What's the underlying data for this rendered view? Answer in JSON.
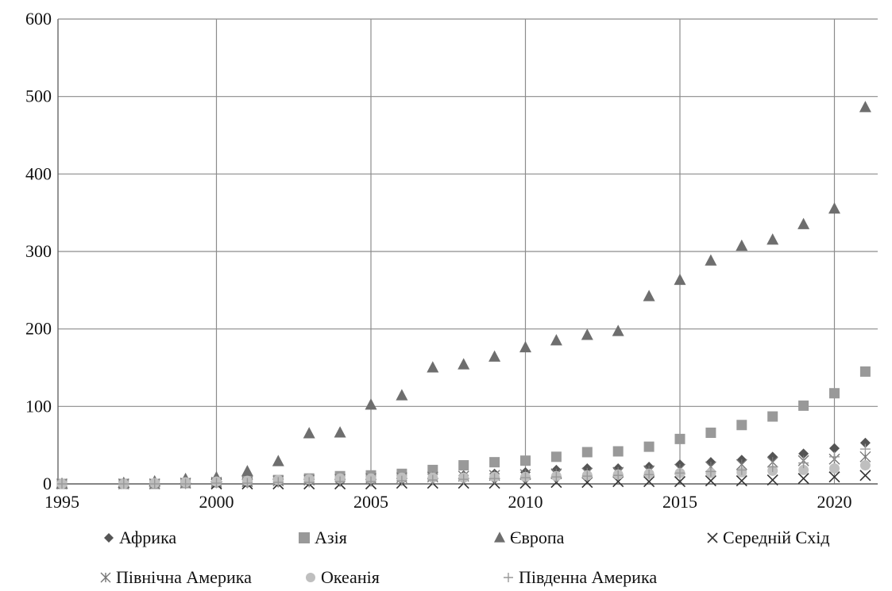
{
  "chart_data": {
    "type": "scatter",
    "title": "",
    "xlabel": "",
    "ylabel": "",
    "xlim": [
      1995,
      2022
    ],
    "ylim": [
      0,
      600
    ],
    "x_ticks": [
      1995,
      2000,
      2005,
      2010,
      2015,
      2020
    ],
    "y_ticks": [
      0,
      100,
      200,
      300,
      400,
      500,
      600
    ],
    "grid": "vertical and horizontal",
    "legend_position": "bottom",
    "series": [
      {
        "name": "Африка",
        "marker": "diamond",
        "color": "#555555",
        "x": [
          2000,
          2001,
          2002,
          2003,
          2004,
          2005,
          2006,
          2007,
          2008,
          2009,
          2010,
          2011,
          2012,
          2013,
          2014,
          2015,
          2016,
          2017,
          2018,
          2019,
          2020,
          2021
        ],
        "y": [
          1,
          1,
          2,
          3,
          3,
          4,
          5,
          7,
          11,
          13,
          15,
          18,
          20,
          20,
          22,
          25,
          28,
          31,
          35,
          39,
          46,
          53
        ]
      },
      {
        "name": "Азія",
        "marker": "square",
        "color": "#999999",
        "x": [
          1995,
          1997,
          1998,
          1999,
          2000,
          2001,
          2002,
          2003,
          2004,
          2005,
          2006,
          2007,
          2008,
          2009,
          2010,
          2011,
          2012,
          2013,
          2014,
          2015,
          2016,
          2017,
          2018,
          2019,
          2020,
          2021
        ],
        "y": [
          0,
          0,
          0,
          1,
          2,
          3,
          5,
          7,
          10,
          11,
          13,
          18,
          24,
          28,
          30,
          35,
          41,
          42,
          48,
          58,
          66,
          76,
          87,
          101,
          117,
          145
        ]
      },
      {
        "name": "Європа",
        "marker": "triangle",
        "color": "#6e6e6e",
        "x": [
          1995,
          1997,
          1998,
          1999,
          2000,
          2001,
          2002,
          2003,
          2004,
          2005,
          2006,
          2007,
          2008,
          2009,
          2010,
          2011,
          2012,
          2013,
          2014,
          2015,
          2016,
          2017,
          2018,
          2019,
          2020,
          2021
        ],
        "y": [
          0,
          1,
          3,
          6,
          8,
          16,
          29,
          65,
          66,
          102,
          114,
          150,
          154,
          164,
          176,
          185,
          192,
          197,
          242,
          263,
          288,
          307,
          315,
          335,
          355,
          486
        ]
      },
      {
        "name": "Середній Схід",
        "marker": "x",
        "color": "#333333",
        "x": [
          2000,
          2001,
          2002,
          2003,
          2004,
          2005,
          2006,
          2007,
          2008,
          2009,
          2010,
          2011,
          2012,
          2013,
          2014,
          2015,
          2016,
          2017,
          2018,
          2019,
          2020,
          2021
        ],
        "y": [
          0,
          0,
          0,
          0,
          0,
          0,
          1,
          1,
          1,
          1,
          1,
          2,
          2,
          3,
          3,
          3,
          4,
          4,
          5,
          7,
          9,
          11
        ]
      },
      {
        "name": "Північна Америка",
        "marker": "asterisk",
        "color": "#777777",
        "x": [
          1995,
          1997,
          1998,
          1999,
          2000,
          2001,
          2002,
          2003,
          2004,
          2005,
          2006,
          2007,
          2008,
          2009,
          2010,
          2011,
          2012,
          2013,
          2014,
          2015,
          2016,
          2017,
          2018,
          2019,
          2020,
          2021
        ],
        "y": [
          0,
          0,
          0,
          1,
          2,
          3,
          4,
          5,
          6,
          7,
          8,
          9,
          10,
          11,
          12,
          13,
          14,
          15,
          17,
          19,
          22,
          25,
          28,
          30,
          32,
          35
        ]
      },
      {
        "name": "Океанія",
        "marker": "circle",
        "color": "#bfbfbf",
        "x": [
          1995,
          1997,
          1998,
          1999,
          2000,
          2001,
          2002,
          2003,
          2004,
          2005,
          2006,
          2007,
          2008,
          2009,
          2010,
          2011,
          2012,
          2013,
          2014,
          2015,
          2016,
          2017,
          2018,
          2019,
          2020,
          2021
        ],
        "y": [
          0,
          0,
          1,
          2,
          3,
          4,
          5,
          6,
          7,
          7,
          8,
          8,
          8,
          9,
          9,
          10,
          11,
          12,
          13,
          14,
          14,
          15,
          17,
          18,
          20,
          24
        ]
      },
      {
        "name": "Південна Америка",
        "marker": "plus",
        "color": "#999999",
        "x": [
          1995,
          1997,
          1998,
          1999,
          2000,
          2001,
          2002,
          2003,
          2004,
          2005,
          2006,
          2007,
          2008,
          2009,
          2010,
          2011,
          2012,
          2013,
          2014,
          2015,
          2016,
          2017,
          2018,
          2019,
          2020,
          2021
        ],
        "y": [
          0,
          0,
          0,
          0,
          1,
          1,
          2,
          2,
          3,
          3,
          4,
          5,
          6,
          7,
          8,
          9,
          10,
          11,
          12,
          14,
          16,
          18,
          22,
          27,
          35,
          45
        ]
      }
    ]
  }
}
